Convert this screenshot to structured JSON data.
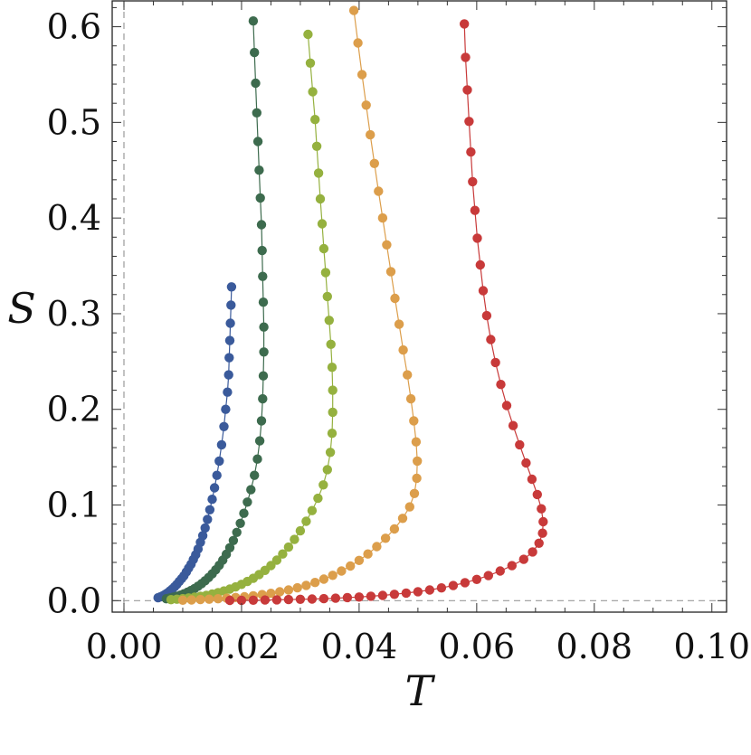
{
  "chart_data": {
    "type": "scatter",
    "title": "",
    "xlabel": "T",
    "ylabel": "S",
    "xlim": [
      -0.002,
      0.1025
    ],
    "ylim": [
      -0.012,
      0.627
    ],
    "xticks": [
      "0.00",
      "0.02",
      "0.04",
      "0.06",
      "0.08",
      "0.10"
    ],
    "yticks": [
      "0.0",
      "0.1",
      "0.2",
      "0.3",
      "0.4",
      "0.5",
      "0.6"
    ],
    "grid": false,
    "legend": "none",
    "reference_lines": {
      "x": 0,
      "y": 0,
      "style": "dashed",
      "color": "#9a9a9a"
    },
    "series": [
      {
        "color": "#3a5a9b",
        "points": [
          [
            0.0058,
            0.003
          ],
          [
            0.0062,
            0.004
          ],
          [
            0.0066,
            0.005
          ],
          [
            0.007,
            0.0065
          ],
          [
            0.0074,
            0.008
          ],
          [
            0.0078,
            0.01
          ],
          [
            0.0082,
            0.012
          ],
          [
            0.0086,
            0.0145
          ],
          [
            0.009,
            0.017
          ],
          [
            0.0094,
            0.02
          ],
          [
            0.0098,
            0.023
          ],
          [
            0.0102,
            0.026
          ],
          [
            0.0106,
            0.03
          ],
          [
            0.011,
            0.034
          ],
          [
            0.0114,
            0.038
          ],
          [
            0.0118,
            0.043
          ],
          [
            0.0122,
            0.048
          ],
          [
            0.0126,
            0.054
          ],
          [
            0.013,
            0.061
          ],
          [
            0.0134,
            0.068
          ],
          [
            0.0138,
            0.076
          ],
          [
            0.0142,
            0.085
          ],
          [
            0.0146,
            0.095
          ],
          [
            0.015,
            0.106
          ],
          [
            0.0154,
            0.118
          ],
          [
            0.0158,
            0.131
          ],
          [
            0.0162,
            0.146
          ],
          [
            0.0166,
            0.163
          ],
          [
            0.017,
            0.182
          ],
          [
            0.0173,
            0.2
          ],
          [
            0.0176,
            0.218
          ],
          [
            0.0178,
            0.236
          ],
          [
            0.0179,
            0.254
          ],
          [
            0.018,
            0.272
          ],
          [
            0.0181,
            0.29
          ],
          [
            0.0182,
            0.309
          ],
          [
            0.0183,
            0.328
          ]
        ]
      },
      {
        "color": "#3d6b4e",
        "points": [
          [
            0.0072,
            0.002
          ],
          [
            0.0078,
            0.0028
          ],
          [
            0.0084,
            0.0036
          ],
          [
            0.009,
            0.0046
          ],
          [
            0.0096,
            0.0058
          ],
          [
            0.0102,
            0.0072
          ],
          [
            0.0108,
            0.0088
          ],
          [
            0.0114,
            0.0106
          ],
          [
            0.012,
            0.0127
          ],
          [
            0.0126,
            0.0151
          ],
          [
            0.0132,
            0.0178
          ],
          [
            0.0138,
            0.0208
          ],
          [
            0.0144,
            0.0242
          ],
          [
            0.015,
            0.028
          ],
          [
            0.0156,
            0.0322
          ],
          [
            0.0162,
            0.037
          ],
          [
            0.0168,
            0.0424
          ],
          [
            0.0174,
            0.0485
          ],
          [
            0.018,
            0.0553
          ],
          [
            0.0186,
            0.0629
          ],
          [
            0.0192,
            0.0714
          ],
          [
            0.0198,
            0.0808
          ],
          [
            0.0204,
            0.0913
          ],
          [
            0.021,
            0.103
          ],
          [
            0.0216,
            0.116
          ],
          [
            0.0222,
            0.131
          ],
          [
            0.0227,
            0.148
          ],
          [
            0.0231,
            0.167
          ],
          [
            0.0234,
            0.188
          ],
          [
            0.0236,
            0.211
          ],
          [
            0.0237,
            0.235
          ],
          [
            0.0238,
            0.26
          ],
          [
            0.0238,
            0.286
          ],
          [
            0.0237,
            0.312
          ],
          [
            0.0236,
            0.339
          ],
          [
            0.0235,
            0.366
          ],
          [
            0.0234,
            0.393
          ],
          [
            0.0232,
            0.421
          ],
          [
            0.023,
            0.45
          ],
          [
            0.0228,
            0.48
          ],
          [
            0.0226,
            0.51
          ],
          [
            0.0224,
            0.541
          ],
          [
            0.0222,
            0.573
          ],
          [
            0.022,
            0.606
          ]
        ]
      },
      {
        "color": "#95b13f",
        "points": [
          [
            0.008,
            0.001
          ],
          [
            0.009,
            0.0015
          ],
          [
            0.01,
            0.0021
          ],
          [
            0.011,
            0.0028
          ],
          [
            0.012,
            0.0036
          ],
          [
            0.013,
            0.0045
          ],
          [
            0.014,
            0.0056
          ],
          [
            0.015,
            0.0069
          ],
          [
            0.016,
            0.0084
          ],
          [
            0.017,
            0.0101
          ],
          [
            0.018,
            0.0121
          ],
          [
            0.019,
            0.0144
          ],
          [
            0.02,
            0.017
          ],
          [
            0.021,
            0.02
          ],
          [
            0.022,
            0.0234
          ],
          [
            0.023,
            0.0273
          ],
          [
            0.024,
            0.0317
          ],
          [
            0.025,
            0.0367
          ],
          [
            0.026,
            0.0424
          ],
          [
            0.027,
            0.0488
          ],
          [
            0.028,
            0.056
          ],
          [
            0.029,
            0.064
          ],
          [
            0.03,
            0.073
          ],
          [
            0.031,
            0.083
          ],
          [
            0.032,
            0.0942
          ],
          [
            0.033,
            0.107
          ],
          [
            0.0339,
            0.121
          ],
          [
            0.0346,
            0.137
          ],
          [
            0.0351,
            0.155
          ],
          [
            0.0354,
            0.175
          ],
          [
            0.0355,
            0.197
          ],
          [
            0.0355,
            0.22
          ],
          [
            0.0354,
            0.244
          ],
          [
            0.0352,
            0.268
          ],
          [
            0.0349,
            0.293
          ],
          [
            0.0346,
            0.318
          ],
          [
            0.0343,
            0.343
          ],
          [
            0.034,
            0.368
          ],
          [
            0.0337,
            0.394
          ],
          [
            0.0334,
            0.42
          ],
          [
            0.0331,
            0.447
          ],
          [
            0.0328,
            0.475
          ],
          [
            0.0325,
            0.503
          ],
          [
            0.0321,
            0.532
          ],
          [
            0.0317,
            0.562
          ],
          [
            0.0313,
            0.592
          ]
        ]
      },
      {
        "color": "#dc9e4b",
        "points": [
          [
            0.01,
            0.0005
          ],
          [
            0.0115,
            0.0008
          ],
          [
            0.013,
            0.0011
          ],
          [
            0.0145,
            0.0015
          ],
          [
            0.016,
            0.002
          ],
          [
            0.0175,
            0.0026
          ],
          [
            0.019,
            0.0033
          ],
          [
            0.0205,
            0.0041
          ],
          [
            0.022,
            0.0051
          ],
          [
            0.0235,
            0.0063
          ],
          [
            0.025,
            0.0077
          ],
          [
            0.0265,
            0.0093
          ],
          [
            0.028,
            0.0112
          ],
          [
            0.0295,
            0.0134
          ],
          [
            0.031,
            0.016
          ],
          [
            0.0325,
            0.019
          ],
          [
            0.034,
            0.0225
          ],
          [
            0.0355,
            0.0265
          ],
          [
            0.037,
            0.031
          ],
          [
            0.0385,
            0.0362
          ],
          [
            0.04,
            0.0421
          ],
          [
            0.0415,
            0.0488
          ],
          [
            0.043,
            0.0565
          ],
          [
            0.0445,
            0.0652
          ],
          [
            0.046,
            0.075
          ],
          [
            0.0474,
            0.086
          ],
          [
            0.0486,
            0.098
          ],
          [
            0.0494,
            0.112
          ],
          [
            0.0498,
            0.128
          ],
          [
            0.0499,
            0.146
          ],
          [
            0.0497,
            0.166
          ],
          [
            0.0493,
            0.188
          ],
          [
            0.0488,
            0.211
          ],
          [
            0.0482,
            0.236
          ],
          [
            0.0475,
            0.262
          ],
          [
            0.0468,
            0.289
          ],
          [
            0.0461,
            0.316
          ],
          [
            0.0454,
            0.344
          ],
          [
            0.0447,
            0.372
          ],
          [
            0.044,
            0.4
          ],
          [
            0.0433,
            0.428
          ],
          [
            0.0426,
            0.457
          ],
          [
            0.0419,
            0.487
          ],
          [
            0.0412,
            0.518
          ],
          [
            0.0405,
            0.55
          ],
          [
            0.0398,
            0.583
          ],
          [
            0.0391,
            0.617
          ]
        ]
      },
      {
        "color": "#c83a3a",
        "points": [
          [
            0.018,
            0.0003
          ],
          [
            0.02,
            0.0004
          ],
          [
            0.022,
            0.0005
          ],
          [
            0.024,
            0.0007
          ],
          [
            0.026,
            0.0009
          ],
          [
            0.028,
            0.0011
          ],
          [
            0.03,
            0.0014
          ],
          [
            0.032,
            0.0017
          ],
          [
            0.034,
            0.0021
          ],
          [
            0.036,
            0.0026
          ],
          [
            0.038,
            0.0032
          ],
          [
            0.04,
            0.0038
          ],
          [
            0.042,
            0.0046
          ],
          [
            0.044,
            0.0055
          ],
          [
            0.046,
            0.0066
          ],
          [
            0.048,
            0.0079
          ],
          [
            0.05,
            0.0094
          ],
          [
            0.052,
            0.0112
          ],
          [
            0.054,
            0.0133
          ],
          [
            0.056,
            0.0158
          ],
          [
            0.058,
            0.0188
          ],
          [
            0.06,
            0.0222
          ],
          [
            0.062,
            0.0262
          ],
          [
            0.064,
            0.031
          ],
          [
            0.066,
            0.0366
          ],
          [
            0.068,
            0.0432
          ],
          [
            0.0695,
            0.051
          ],
          [
            0.0706,
            0.06
          ],
          [
            0.0712,
            0.0705
          ],
          [
            0.0713,
            0.0825
          ],
          [
            0.071,
            0.096
          ],
          [
            0.0703,
            0.111
          ],
          [
            0.0694,
            0.127
          ],
          [
            0.0684,
            0.144
          ],
          [
            0.0673,
            0.163
          ],
          [
            0.0662,
            0.183
          ],
          [
            0.0651,
            0.204
          ],
          [
            0.0641,
            0.226
          ],
          [
            0.0632,
            0.249
          ],
          [
            0.0624,
            0.273
          ],
          [
            0.0617,
            0.298
          ],
          [
            0.0611,
            0.324
          ],
          [
            0.0606,
            0.351
          ],
          [
            0.0601,
            0.379
          ],
          [
            0.0597,
            0.408
          ],
          [
            0.0593,
            0.438
          ],
          [
            0.059,
            0.469
          ],
          [
            0.0587,
            0.501
          ],
          [
            0.0584,
            0.534
          ],
          [
            0.0581,
            0.568
          ],
          [
            0.0579,
            0.603
          ]
        ]
      }
    ]
  }
}
